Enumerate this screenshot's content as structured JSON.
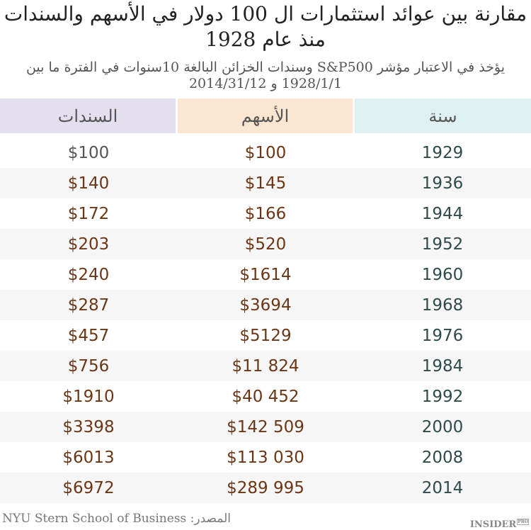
{
  "title": "مقارنة بين عوائد استثمارات ال 100 دولار في الأسهم والسندات منذ عام 1928",
  "subtitle": "يؤخذ في الاعتبار مؤشر S&P500 وسندات الخزائن البالغة 10سنوات في الفترة ما بين 1928/1/1 و 2014/31/12",
  "colors": {
    "bonds_header": "#e3dfee",
    "stocks_header": "#fbe6d2",
    "year_header": "#dff0f3",
    "value_text": "#6b3615",
    "year_text": "#2f4a4a"
  },
  "chart_data": {
    "type": "table",
    "columns": [
      "السندات",
      "الأسهم",
      "سنة"
    ],
    "rows": [
      [
        "$100",
        "$100",
        "1929"
      ],
      [
        "$140",
        "$145",
        "1936"
      ],
      [
        "$172",
        "$166",
        "1944"
      ],
      [
        "$203",
        "$520",
        "1952"
      ],
      [
        "$240",
        "$1614",
        "1960"
      ],
      [
        "$287",
        "$3694",
        "1968"
      ],
      [
        "$457",
        "$5129",
        "1976"
      ],
      [
        "$756",
        "$11 824",
        "1984"
      ],
      [
        "$1910",
        "$40 452",
        "1992"
      ],
      [
        "$3398",
        "$142 509",
        "2000"
      ],
      [
        "$6013",
        "$113 030",
        "2008"
      ],
      [
        "$6972",
        "$289 995",
        "2014"
      ]
    ]
  },
  "source": "NYU Stern School of Business :المصدر",
  "logo": {
    "text": "INSIDER",
    "badge": "PRO"
  }
}
